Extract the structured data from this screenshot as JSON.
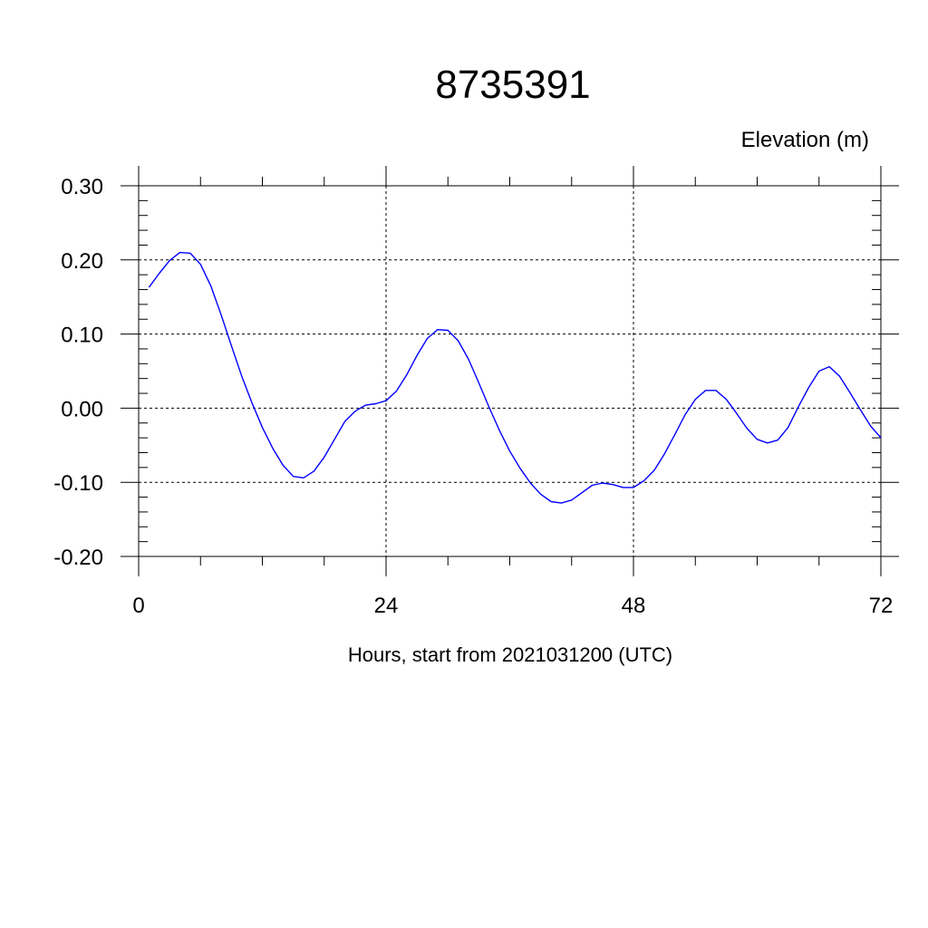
{
  "chart_data": {
    "type": "line",
    "title": "8735391",
    "units_label": "Elevation (m)",
    "xlabel": "Hours, start from 2021031200 (UTC)",
    "ylabel": "",
    "xlim": [
      0,
      72
    ],
    "ylim": [
      -0.2,
      0.3
    ],
    "x_ticks": [
      0,
      24,
      48,
      72
    ],
    "x_tick_labels": [
      "0",
      "24",
      "48",
      "72"
    ],
    "y_ticks": [
      -0.2,
      -0.1,
      0.0,
      0.1,
      0.2,
      0.3
    ],
    "y_tick_labels": [
      "-0.20",
      "-0.10",
      "0.00",
      "0.10",
      "0.20",
      "0.30"
    ],
    "grid": true,
    "line_color": "#0000ff",
    "series": [
      {
        "x": [
          1,
          2,
          3,
          4,
          5,
          6,
          7,
          8,
          9,
          10,
          11,
          12,
          13,
          14,
          15,
          16,
          17,
          18,
          19,
          20,
          21,
          22,
          23,
          24,
          25,
          26,
          27,
          28,
          29,
          30,
          31,
          32,
          33,
          34,
          35,
          36,
          37,
          38,
          39,
          40,
          41,
          42,
          43,
          44,
          45,
          46,
          47,
          48,
          49,
          50,
          51,
          52,
          53,
          54,
          55,
          56,
          57,
          58,
          59,
          60,
          61,
          62,
          63,
          64,
          65,
          66,
          67,
          68,
          69,
          70,
          71,
          72
        ],
        "values": [
          0.163,
          0.182,
          0.199,
          0.21,
          0.209,
          0.194,
          0.165,
          0.126,
          0.084,
          0.043,
          0.007,
          -0.026,
          -0.054,
          -0.077,
          -0.092,
          -0.094,
          -0.085,
          -0.066,
          -0.042,
          -0.018,
          -0.004,
          0.004,
          0.006,
          0.01,
          0.023,
          0.045,
          0.071,
          0.094,
          0.106,
          0.105,
          0.091,
          0.066,
          0.034,
          0.001,
          -0.03,
          -0.058,
          -0.081,
          -0.101,
          -0.116,
          -0.126,
          -0.128,
          -0.124,
          -0.114,
          -0.104,
          -0.101,
          -0.103,
          -0.107,
          -0.107,
          -0.098,
          -0.084,
          -0.062,
          -0.036,
          -0.009,
          0.012,
          0.024,
          0.024,
          0.012,
          -0.007,
          -0.027,
          -0.042,
          -0.047,
          -0.043,
          -0.026,
          0.002,
          0.028,
          0.05,
          0.056,
          0.043,
          0.021,
          -0.002,
          -0.024,
          -0.04
        ]
      }
    ]
  }
}
